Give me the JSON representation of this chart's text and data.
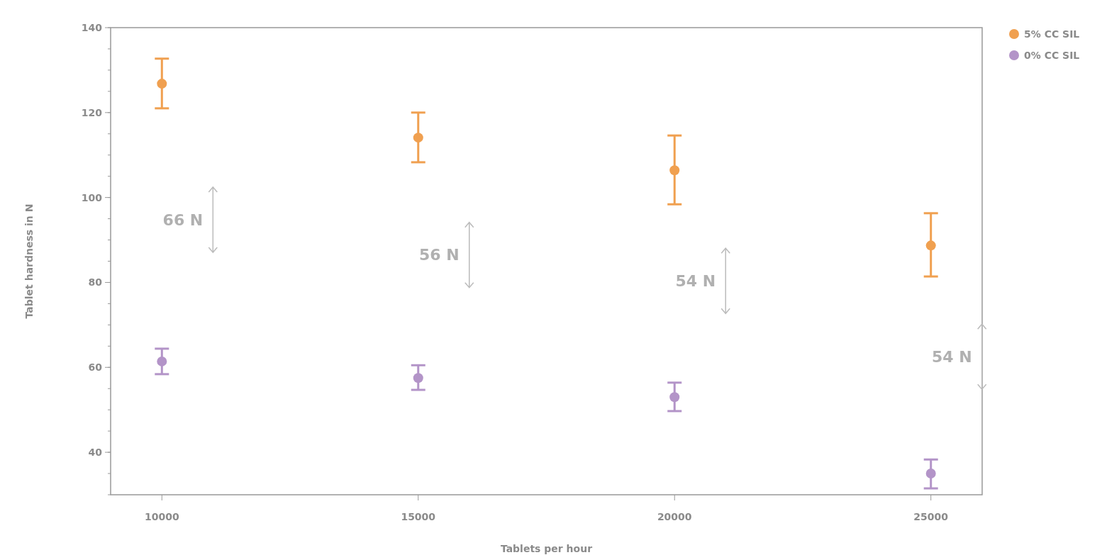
{
  "chart_data": {
    "type": "scatter",
    "xlabel": "Tablets per hour",
    "ylabel": "Tablet hardness in N",
    "x": [
      10000,
      15000,
      20000,
      25000
    ],
    "series": [
      {
        "name": "5% CC SIL",
        "color": "#f0a050",
        "values": [
          126.8,
          114.1,
          106.4,
          88.7
        ],
        "errors": [
          [
            121,
            132.7
          ],
          [
            108.3,
            120
          ],
          [
            98.4,
            114.6
          ],
          [
            81.4,
            96.3
          ]
        ]
      },
      {
        "name": "0% CC SIL",
        "color": "#b394c8",
        "values": [
          61.4,
          57.5,
          53,
          35
        ],
        "errors": [
          [
            58.4,
            64.4
          ],
          [
            54.7,
            60.5
          ],
          [
            49.7,
            56.4
          ],
          [
            31.5,
            38.3
          ]
        ]
      }
    ],
    "xlim": [
      9000,
      26000
    ],
    "xticks": [
      10000,
      15000,
      20000,
      25000
    ],
    "ylim": [
      30,
      140
    ],
    "yticks": [
      40,
      60,
      80,
      100,
      120,
      140
    ],
    "annotations": [
      "66 N",
      "56 N",
      "54 N",
      "54 N"
    ],
    "marker": "circle",
    "grid": false,
    "legend": "top right"
  }
}
